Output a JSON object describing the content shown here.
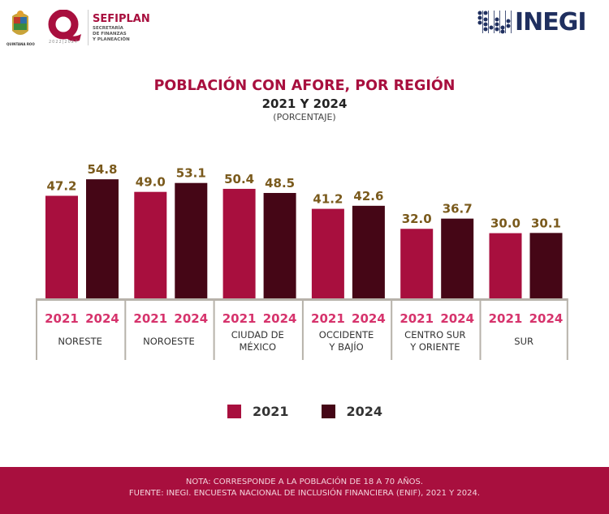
{
  "header": {
    "state_logo_label": "QUINTANA ROO",
    "q_logo_years": "2022|2027",
    "sefiplan_name": "SEFIPLAN",
    "sefiplan_sub": [
      "SECRETARÍA",
      "DE FINANZAS",
      "Y PLANEACIÓN"
    ],
    "inegi_name": "INEGI"
  },
  "colors": {
    "s2021": "#a80f3e",
    "s2024": "#450616",
    "value_label": "#7a5a1c",
    "year_label": "#d6336c",
    "axis": "#b7b2aa"
  },
  "chart_data": {
    "type": "bar",
    "title": "POBLACIÓN CON AFORE, POR REGIÓN",
    "subtitle": "2021 Y 2024",
    "unit_label": "(PORCENTAJE)",
    "categories": [
      "NORESTE",
      "NOROESTE",
      "CIUDAD DE MÉXICO",
      "OCCIDENTE Y BAJÍO",
      "CENTRO SUR Y ORIENTE",
      "SUR"
    ],
    "category_lines": [
      [
        "NORESTE"
      ],
      [
        "NOROESTE"
      ],
      [
        "CIUDAD DE",
        "MÉXICO"
      ],
      [
        "OCCIDENTE",
        "Y BAJÍO"
      ],
      [
        "CENTRO SUR",
        "Y ORIENTE"
      ],
      [
        "SUR"
      ]
    ],
    "series": [
      {
        "name": "2021",
        "values": [
          47.2,
          49.0,
          50.4,
          41.2,
          32.0,
          30.0
        ]
      },
      {
        "name": "2024",
        "values": [
          54.8,
          53.1,
          48.5,
          42.6,
          36.7,
          30.1
        ]
      }
    ],
    "value_labels": [
      [
        "47.2",
        "49.0",
        "50.4",
        "41.2",
        "32.0",
        "30.0"
      ],
      [
        "54.8",
        "53.1",
        "48.5",
        "42.6",
        "36.7",
        "30.1"
      ]
    ],
    "ylim": [
      0,
      60
    ],
    "grid": false,
    "legend_position": "bottom-center"
  },
  "legend": [
    {
      "label": "2021"
    },
    {
      "label": "2024"
    }
  ],
  "footer": {
    "note": "NOTA: CORRESPONDE A LA POBLACIÓN DE 18 A 70 AÑOS.",
    "source": "FUENTE: INEGI. ENCUESTA NACIONAL DE INCLUSIÓN FINANCIERA (ENIF), 2021 Y 2024."
  }
}
